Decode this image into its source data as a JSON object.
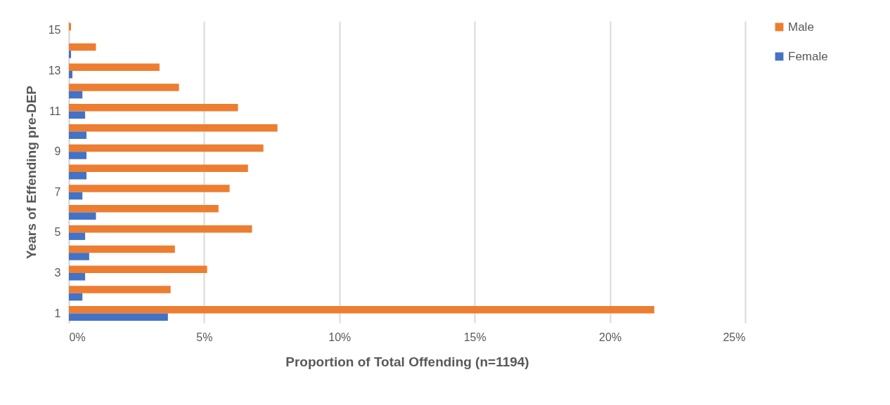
{
  "chart_data": {
    "type": "bar",
    "orientation": "horizontal",
    "xlabel": "Proportion of Total Offending (n=1194)",
    "ylabel": "Years of Effending pre-DEP",
    "categories": [
      "15",
      null,
      "13",
      null,
      "11",
      null,
      "9",
      null,
      "7",
      null,
      "5",
      null,
      "3",
      null,
      "1"
    ],
    "series": [
      {
        "name": "Male",
        "color": "#ed7d31",
        "values": [
          0.08,
          1.0,
          3.35,
          4.07,
          6.25,
          7.71,
          7.19,
          6.62,
          5.94,
          5.53,
          6.77,
          3.92,
          5.11,
          3.76,
          21.64
        ]
      },
      {
        "name": "Female",
        "color": "#4472c4",
        "values": [
          0,
          0.08,
          0.13,
          0.5,
          0.6,
          0.65,
          0.65,
          0.65,
          0.5,
          1.0,
          0.6,
          0.75,
          0.6,
          0.5,
          3.66
        ]
      }
    ],
    "xlim": [
      0,
      25
    ],
    "xticks": [
      {
        "value": 0,
        "label": "0%"
      },
      {
        "value": 5,
        "label": "5%"
      },
      {
        "value": 10,
        "label": "10%"
      },
      {
        "value": 15,
        "label": "15%"
      },
      {
        "value": 20,
        "label": "20%"
      },
      {
        "value": 25,
        "label": "25%"
      }
    ],
    "grid": "x",
    "legend": "right"
  }
}
